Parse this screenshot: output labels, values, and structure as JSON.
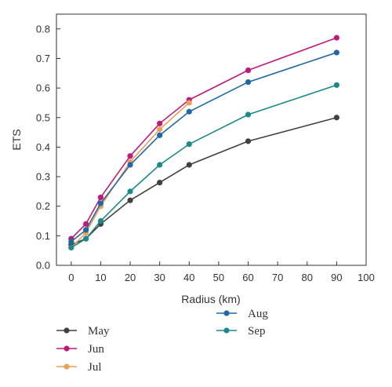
{
  "chart_data": {
    "type": "line",
    "xlabel": "Radius (km)",
    "ylabel": "ETS",
    "xlim": [
      -5,
      100
    ],
    "ylim": [
      0,
      0.85
    ],
    "xticks": [
      0,
      10,
      20,
      30,
      40,
      50,
      60,
      70,
      80,
      90,
      100
    ],
    "yticks": [
      0.0,
      0.1,
      0.2,
      0.3,
      0.4,
      0.5,
      0.6,
      0.7,
      0.8
    ],
    "grid": false,
    "legend_position": "bottom",
    "series": [
      {
        "name": "May",
        "color": "#404040",
        "x": [
          0,
          5,
          10,
          20,
          30,
          40,
          60,
          90
        ],
        "y": [
          0.07,
          0.09,
          0.14,
          0.22,
          0.28,
          0.34,
          0.42,
          0.5
        ]
      },
      {
        "name": "Jun",
        "color": "#c2187c",
        "x": [
          0,
          5,
          10,
          20,
          30,
          40,
          60,
          90
        ],
        "y": [
          0.09,
          0.14,
          0.23,
          0.37,
          0.48,
          0.56,
          0.66,
          0.77
        ]
      },
      {
        "name": "Jul",
        "color": "#e8a156",
        "x": [
          0,
          5,
          10,
          20,
          30,
          40
        ],
        "y": [
          0.06,
          0.11,
          0.2,
          0.35,
          0.46,
          0.55
        ]
      },
      {
        "name": "Aug",
        "color": "#1f68a8",
        "x": [
          0,
          5,
          10,
          20,
          30,
          40,
          60,
          90
        ],
        "y": [
          0.08,
          0.12,
          0.21,
          0.34,
          0.44,
          0.52,
          0.62,
          0.72
        ]
      },
      {
        "name": "Sep",
        "color": "#1a8a8c",
        "x": [
          0,
          5,
          10,
          20,
          30,
          40,
          60,
          90
        ],
        "y": [
          0.06,
          0.09,
          0.15,
          0.25,
          0.34,
          0.41,
          0.51,
          0.61
        ]
      }
    ]
  }
}
